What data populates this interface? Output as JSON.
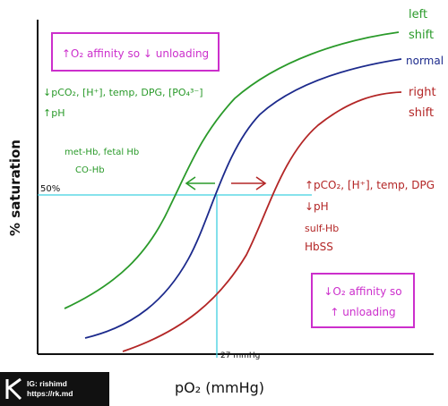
{
  "diagram": {
    "y_axis_label": "% saturation",
    "x_axis_label": "pO₂ (mmHg)",
    "marker_50": "50%",
    "marker_27": "27 mmHg",
    "curves": {
      "left": {
        "label_line1": "left",
        "label_line2": "shift",
        "color": "#2a9a2a"
      },
      "normal": {
        "label": "normal",
        "color": "#1c2a8c"
      },
      "right": {
        "label_line1": "right",
        "label_line2": "shift",
        "color": "#b32626"
      }
    },
    "crosshair_color": "#3fd0e0",
    "accent_color": "#cc2fcc",
    "top_box": "↑O₂ affinity so ↓ unloading",
    "bottom_box_line1": "↓O₂ affinity so",
    "bottom_box_line2": "↑ unloading",
    "left_causes": {
      "line1": "↓pCO₂, [H⁺], temp, DPG, [PO₄³⁻]",
      "line2": "↑pH",
      "line3": "met-Hb, fetal Hb",
      "line4": "CO-Hb"
    },
    "right_causes": {
      "line1": "↑pCO₂, [H⁺], temp, DPG",
      "line2": "↓pH",
      "line3": "sulf-Hb",
      "line4": "HbSS"
    }
  },
  "watermark": {
    "line1": "IG: rishimd",
    "line2": "https://rk.md"
  }
}
